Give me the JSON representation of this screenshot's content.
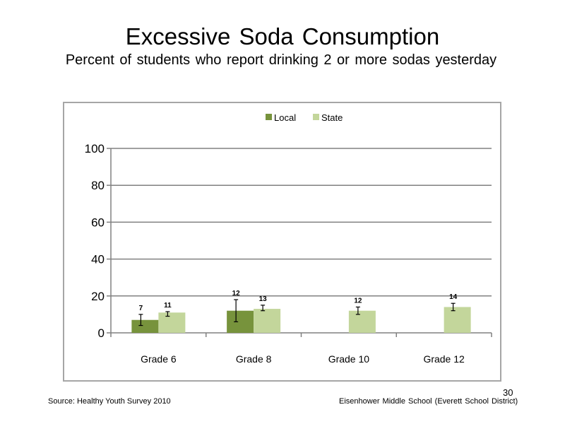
{
  "slide": {
    "title": "Excessive Soda Consumption",
    "subtitle": "Percent of students who report drinking 2 or more sodas yesterday",
    "source": "Source: Healthy Youth Survey 2010",
    "school": "Eisenhower Middle School (Everett School District)",
    "page_number": "30"
  },
  "chart_data": {
    "type": "bar",
    "title": "",
    "xlabel": "",
    "ylabel": "",
    "ylim": [
      0,
      100
    ],
    "yticks": [
      0,
      20,
      40,
      60,
      80,
      100
    ],
    "grid": true,
    "legend_position": "top",
    "categories": [
      "Grade 6",
      "Grade 8",
      "Grade 10",
      "Grade 12"
    ],
    "series": [
      {
        "name": "Local",
        "color": "#77933c",
        "values": [
          7,
          12,
          null,
          null
        ],
        "labels": [
          "7",
          "12",
          "",
          ""
        ],
        "error_low": [
          4,
          6,
          null,
          null
        ],
        "error_high": [
          10,
          18,
          null,
          null
        ]
      },
      {
        "name": "State",
        "color": "#c3d69b",
        "values": [
          11,
          13,
          12,
          14
        ],
        "labels": [
          "11",
          "13",
          "12",
          "14"
        ],
        "error_low": [
          9,
          12,
          10,
          12
        ],
        "error_high": [
          11.5,
          15,
          14,
          16
        ]
      }
    ]
  }
}
